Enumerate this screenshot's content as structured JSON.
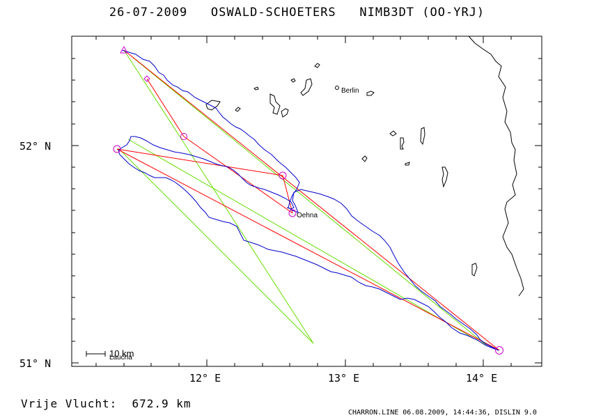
{
  "header": {
    "date": "26-07-2009",
    "pilot": "OSWALD-SCHOETERS",
    "glider": "NIMB3DT (OO-YRJ)"
  },
  "map": {
    "lat_labels": [
      "52° N",
      "51° N"
    ],
    "lon_labels": [
      "12° E",
      "13° E",
      "14° E"
    ],
    "places": {
      "berlin": "Berlin",
      "oehna": "Oehna",
      "laucha": "Laucha"
    },
    "scale_label": "10 km",
    "colors": {
      "track": "#0000cc",
      "task": "#ff0000",
      "legs": "#66dd00",
      "turnpoints": "#cc00cc",
      "border": "#000000"
    }
  },
  "footer": {
    "distance_label": "Vrije Vlucht:",
    "distance_value": "672.9 km",
    "credit": "CHARRON.LINE 06.08.2009, 14:44:36, DISLIN 9.0"
  }
}
